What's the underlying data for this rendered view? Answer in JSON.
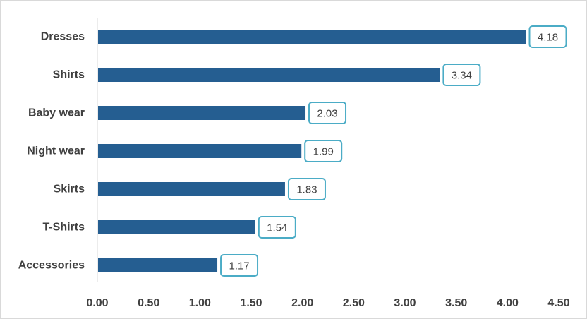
{
  "chart_data": {
    "type": "bar",
    "orientation": "horizontal",
    "categories": [
      "Dresses",
      "Shirts",
      "Baby wear",
      "Night wear",
      "Skirts",
      "T-Shirts",
      "Accessories"
    ],
    "values": [
      4.18,
      3.34,
      2.03,
      1.99,
      1.83,
      1.54,
      1.17
    ],
    "value_labels": [
      "4.18",
      "3.34",
      "2.03",
      "1.99",
      "1.83",
      "1.54",
      "1.17"
    ],
    "x_ticks": [
      "0.00",
      "0.50",
      "1.00",
      "1.50",
      "2.00",
      "2.50",
      "3.00",
      "3.50",
      "4.00",
      "4.50"
    ],
    "xlim": [
      0,
      4.5
    ],
    "title": "",
    "xlabel": "",
    "ylabel": "",
    "grid": false,
    "legend": "none",
    "colors": {
      "bar": "#255e91",
      "label_border": "#4bacc6",
      "axis": "#d9d9d9",
      "text": "#404040"
    }
  }
}
